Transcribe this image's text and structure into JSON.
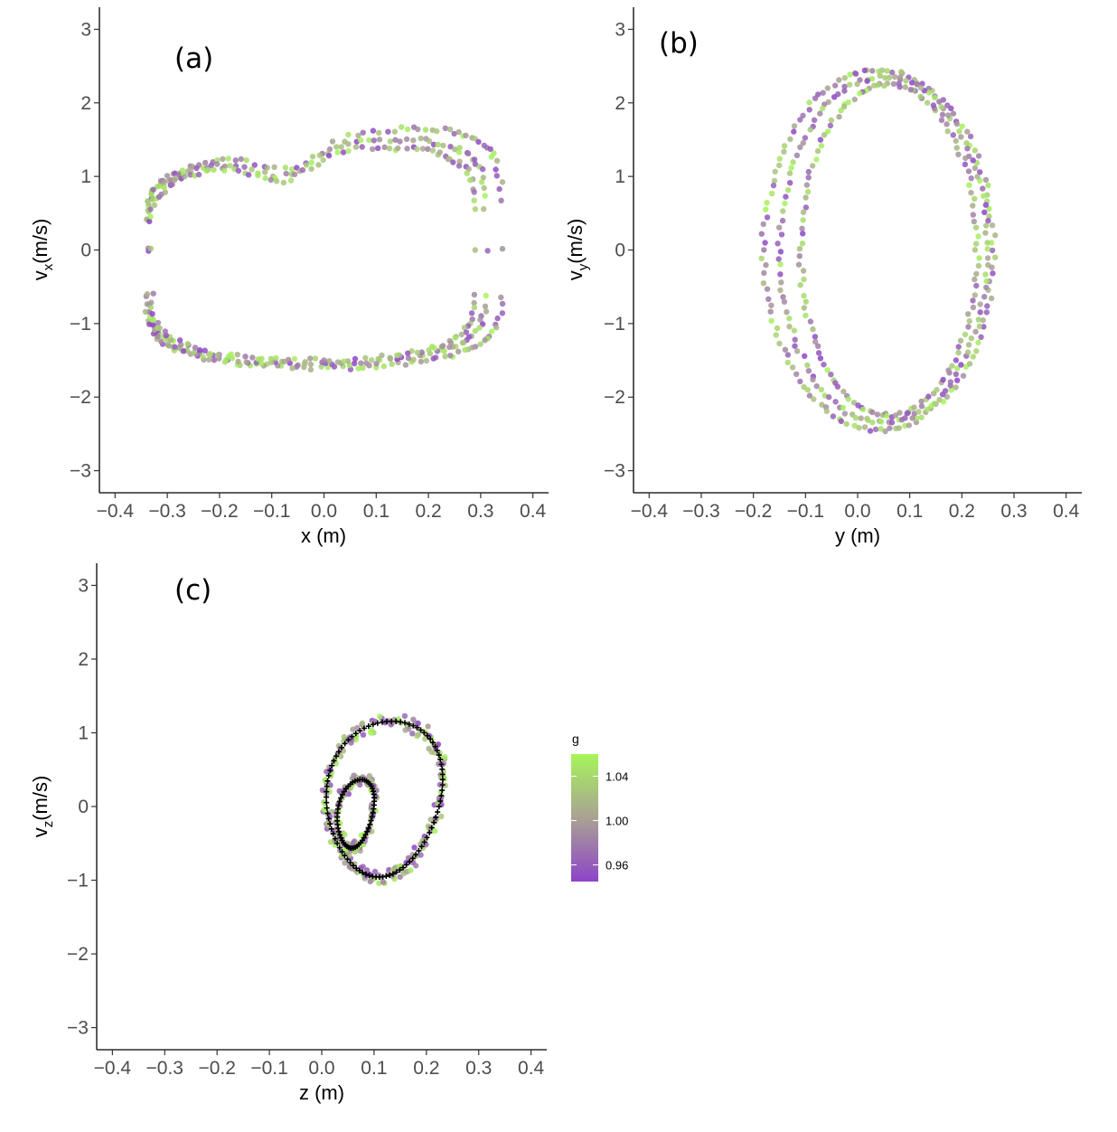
{
  "chart_data": [
    {
      "panel": "a",
      "type": "scatter",
      "label": "(a)",
      "xlabel": "x (m)",
      "ylabel": "vx(m/s)",
      "ylabel_main": "v",
      "ylabel_sub": "x",
      "ylabel_rest": "(m/s)",
      "xlim": [
        -0.43,
        0.43
      ],
      "ylim": [
        -3.3,
        3.3
      ],
      "xticks": [
        -0.4,
        -0.3,
        -0.2,
        -0.1,
        0.0,
        0.1,
        0.2,
        0.3,
        0.4
      ],
      "xtick_labels": [
        "−0.4",
        "−0.3",
        "−0.2",
        "−0.1",
        "0.0",
        "0.1",
        "0.2",
        "0.3",
        "0.4"
      ],
      "yticks": [
        3,
        2,
        1,
        0,
        -1,
        -2,
        -3
      ],
      "ytick_labels": [
        "3",
        "2",
        "1",
        "0",
        "−1",
        "−2",
        "−3"
      ],
      "grid": false,
      "trajectory": {
        "description_free": true,
        "loops": [
          {
            "x_range": [
              -0.34,
              0.34
            ],
            "vx_top_left": 1.25,
            "vx_top_right": 1.95,
            "vx_dip": 1.0,
            "vx_bottom": -1.6
          },
          {
            "x_range": [
              -0.34,
              0.31
            ],
            "vx_top_left": 1.2,
            "vx_top_right": 1.75,
            "vx_dip": 1.05,
            "vx_bottom": -1.55
          },
          {
            "x_range": [
              -0.33,
              0.29
            ],
            "vx_top_left": 1.15,
            "vx_top_right": 1.6,
            "vx_dip": 1.0,
            "vx_bottom": -1.5
          }
        ]
      }
    },
    {
      "panel": "b",
      "type": "scatter",
      "label": "(b)",
      "xlabel": "y (m)",
      "ylabel": "vy(m/s)",
      "ylabel_main": "v",
      "ylabel_sub": "y",
      "ylabel_rest": "(m/s)",
      "xlim": [
        -0.43,
        0.43
      ],
      "ylim": [
        -3.3,
        3.3
      ],
      "xticks": [
        -0.4,
        -0.3,
        -0.2,
        -0.1,
        0.0,
        0.1,
        0.2,
        0.3,
        0.4
      ],
      "xtick_labels": [
        "−0.4",
        "−0.3",
        "−0.2",
        "−0.1",
        "0.0",
        "0.1",
        "0.2",
        "0.3",
        "0.4"
      ],
      "yticks": [
        3,
        2,
        1,
        0,
        -1,
        -2,
        -3
      ],
      "ytick_labels": [
        "3",
        "2",
        "1",
        "0",
        "−1",
        "−2",
        "−3"
      ],
      "grid": false,
      "ellipses": [
        {
          "center_y": 0.04,
          "half_width": 0.22,
          "vy_amplitude": 2.45
        },
        {
          "center_y": 0.05,
          "half_width": 0.2,
          "vy_amplitude": 2.35
        },
        {
          "center_y": 0.06,
          "half_width": 0.17,
          "vy_amplitude": 2.25
        }
      ]
    },
    {
      "panel": "c",
      "type": "scatter",
      "label": "(c)",
      "xlabel": "z (m)",
      "ylabel": "vz(m/s)",
      "ylabel_main": "v",
      "ylabel_sub": "z",
      "ylabel_rest": "(m/s)",
      "xlim": [
        -0.43,
        0.43
      ],
      "ylim": [
        -3.3,
        3.3
      ],
      "xticks": [
        -0.4,
        -0.3,
        -0.2,
        -0.1,
        0.0,
        0.1,
        0.2,
        0.3,
        0.4
      ],
      "xtick_labels": [
        "−0.4",
        "−0.3",
        "−0.2",
        "−0.1",
        "0.0",
        "0.1",
        "0.2",
        "0.3",
        "0.4"
      ],
      "yticks": [
        3,
        2,
        1,
        0,
        -1,
        -2,
        -3
      ],
      "ytick_labels": [
        "3",
        "2",
        "1",
        "0",
        "−1",
        "−2",
        "−3"
      ],
      "grid": false,
      "large_loop": {
        "z_center": 0.12,
        "z_half_width": 0.11,
        "vz_center": 0.1,
        "vz_amplitude": 1.05
      },
      "small_loop": {
        "z_center": 0.065,
        "z_half_width": 0.035,
        "vz_center": -0.1,
        "vz_amplitude": 0.45
      },
      "reference_marker": "+",
      "reference_color": "#000000"
    }
  ],
  "legend": {
    "title": "g",
    "labels": [
      "1.04",
      "1.00",
      "0.96"
    ],
    "values": [
      1.04,
      1.0,
      0.96
    ],
    "range": [
      0.945,
      1.06
    ],
    "colors": {
      "high": "#a6f55a",
      "mid": "#a9a293",
      "low": "#8e44c8"
    }
  }
}
